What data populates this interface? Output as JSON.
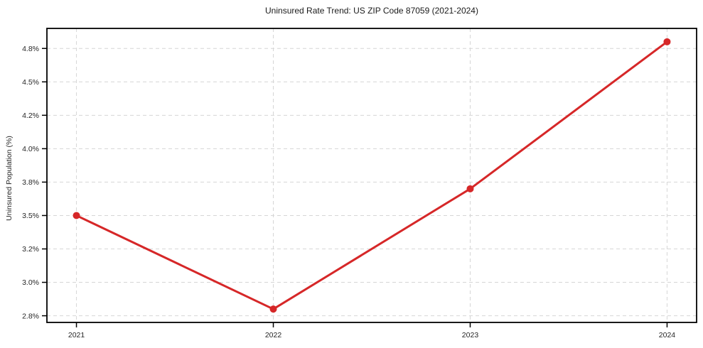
{
  "chart_data": {
    "type": "line",
    "title": "Uninsured Rate Trend: US ZIP Code 87059 (2021-2024)",
    "xlabel": "",
    "ylabel": "Uninsured Population (%)",
    "x": [
      2021,
      2022,
      2023,
      2024
    ],
    "xtick_labels": [
      "2021",
      "2022",
      "2023",
      "2024"
    ],
    "series": [
      {
        "name": "Uninsured Rate",
        "values": [
          3.5,
          2.8,
          3.7,
          4.8
        ]
      }
    ],
    "ylim": [
      2.7,
      4.9
    ],
    "yticks": [
      2.75,
      3.0,
      3.25,
      3.5,
      3.75,
      4.0,
      4.25,
      4.5,
      4.75
    ],
    "ytick_labels": [
      "2.8%",
      "3.0%",
      "3.2%",
      "3.5%",
      "3.8%",
      "4.0%",
      "4.2%",
      "4.5%",
      "4.8%"
    ],
    "grid": true,
    "grid_style": "dashed",
    "legend_position": "none",
    "colors": {
      "line": "#d62728",
      "marker": "#d62728",
      "grid": "#d6d6d6",
      "axis": "#000000",
      "tick_text": "#262626",
      "title_text": "#1a1a1a",
      "background": "#ffffff"
    }
  }
}
